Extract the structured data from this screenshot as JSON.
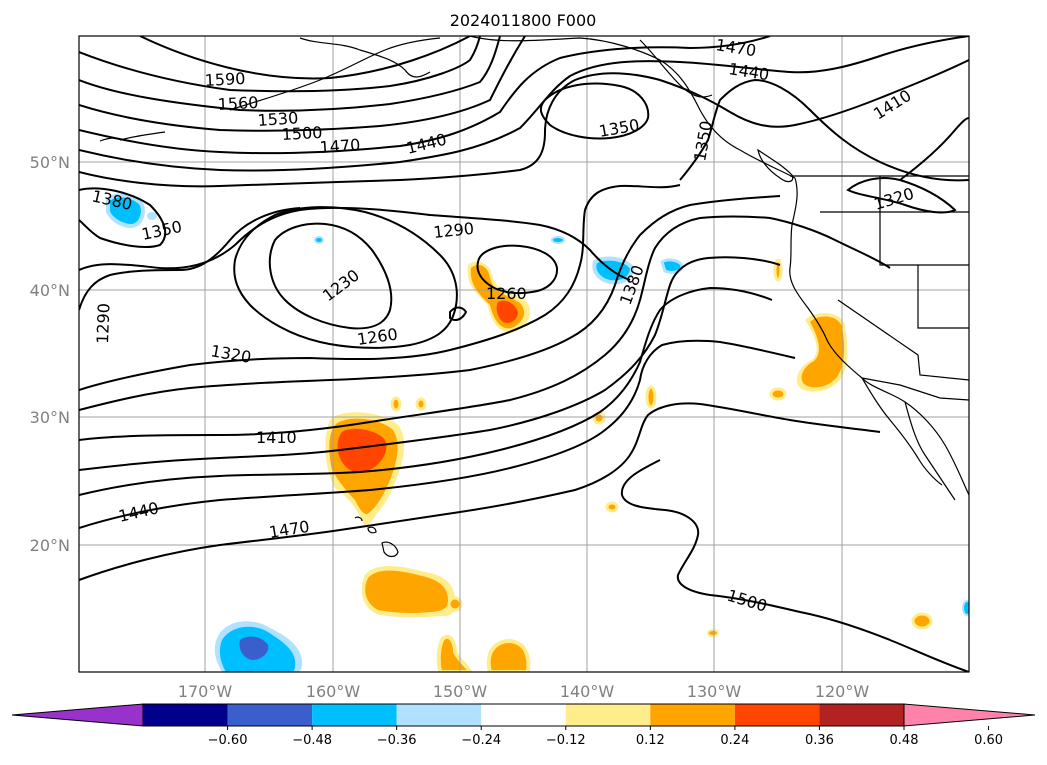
{
  "title": "2024011800 F000",
  "lat_labels": [
    "50°N",
    "40°N",
    "30°N",
    "20°N"
  ],
  "lon_labels": [
    "170°W",
    "160°W",
    "150°W",
    "140°W",
    "130°W",
    "120°W"
  ],
  "contour_labels": [
    "1590",
    "1560",
    "1530",
    "1500",
    "1470",
    "1440",
    "1470",
    "1440",
    "1410",
    "1350",
    "1350",
    "1320",
    "1380",
    "1350",
    "1290",
    "1230",
    "1260",
    "1260",
    "1290",
    "1380",
    "1320",
    "1410",
    "1440",
    "1470",
    "1500"
  ],
  "colorbar": {
    "ticks": [
      "−0.60",
      "−0.48",
      "−0.36",
      "−0.24",
      "−0.12",
      "0.12",
      "0.24",
      "0.36",
      "0.48",
      "0.60"
    ],
    "colors": [
      "#9932cc",
      "#00008b",
      "#3a5fcd",
      "#00bfff",
      "#b0e2ff",
      "#ffffff",
      "#ffec8b",
      "#ffa500",
      "#ff4500",
      "#b22222",
      "#ff82ab"
    ]
  },
  "colors": {
    "light_yellow": "#ffec8b",
    "orange": "#ffa500",
    "orange_red": "#ff4500",
    "light_blue": "#b0e2ff",
    "deep_sky_blue": "#00bfff",
    "royal_blue": "#3a5fcd"
  }
}
